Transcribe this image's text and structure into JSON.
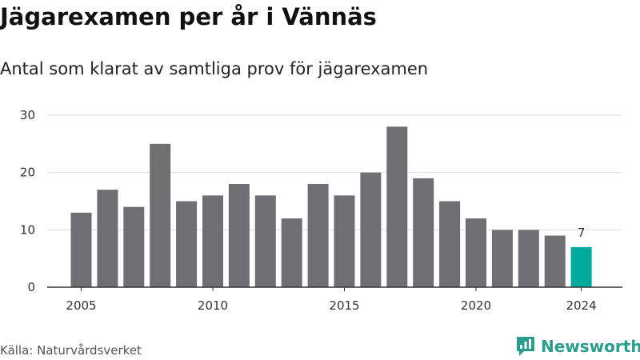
{
  "header": {
    "title": "Jägarexamen per år i Vännäs",
    "subtitle": "Antal som klarat av samtliga prov för jägarexamen"
  },
  "footer": {
    "source": "Källa: Naturvårdsverket",
    "brand": "Newsworthy"
  },
  "colors": {
    "bar": "#6f6e73",
    "highlight": "#00a99d",
    "grid": "#dddddd",
    "brand": "#2a9d8f"
  },
  "icons": {
    "logo": "newsworthy-logo-icon"
  },
  "chart_data": {
    "type": "bar",
    "x": [
      2005,
      2006,
      2007,
      2008,
      2009,
      2010,
      2011,
      2012,
      2013,
      2014,
      2015,
      2016,
      2017,
      2018,
      2019,
      2020,
      2021,
      2022,
      2023,
      2024
    ],
    "values": [
      13,
      17,
      14,
      25,
      15,
      16,
      18,
      16,
      12,
      18,
      16,
      20,
      28,
      19,
      15,
      12,
      10,
      10,
      9,
      7
    ],
    "highlight_index": 19,
    "highlight_label": "7",
    "xticks": [
      "2005",
      "2010",
      "2015",
      "2020",
      "2024"
    ],
    "yticks": [
      "0",
      "10",
      "20",
      "30"
    ],
    "ylim": [
      0,
      30
    ],
    "grid": true
  }
}
